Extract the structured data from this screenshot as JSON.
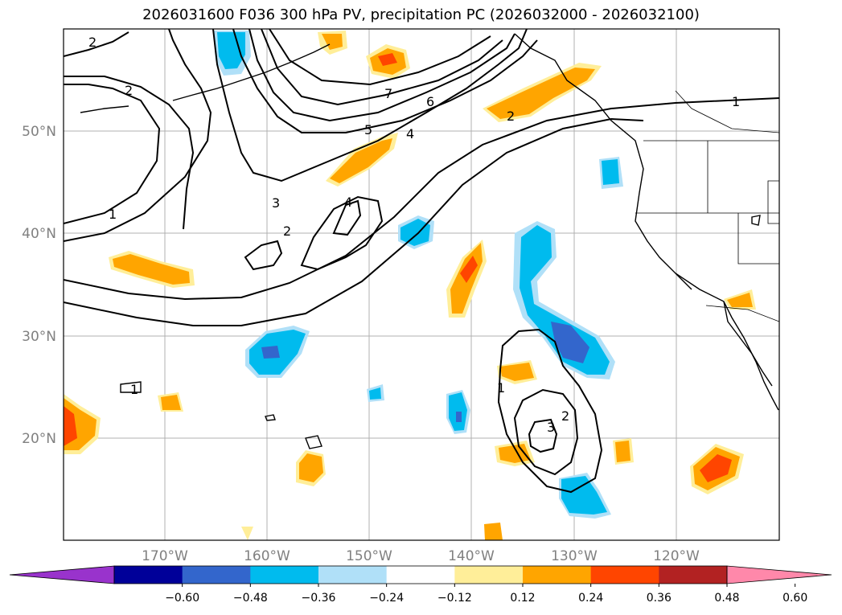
{
  "title": "2026031600 F036 300 hPa PV, precipitation PC (2026032000 - 2026032100)",
  "lat_labels": [
    "50°N",
    "40°N",
    "30°N",
    "20°N"
  ],
  "lon_labels": [
    "170°W",
    "160°W",
    "150°W",
    "140°W",
    "130°W",
    "120°W"
  ],
  "colorbar": {
    "colors": [
      "#9933cc",
      "#000099",
      "#3366cc",
      "#00bbee",
      "#b0e0f8",
      "#ffffff",
      "#ffee99",
      "#ffa500",
      "#ff4500",
      "#b22222",
      "#ff88aa"
    ],
    "tick_labels": [
      "−0.60",
      "−0.48",
      "−0.36",
      "−0.24",
      "−0.12",
      "0.12",
      "0.24",
      "0.36",
      "0.48",
      "0.60"
    ]
  },
  "contour_labels": [
    "2",
    "2",
    "1",
    "7",
    "6",
    "5",
    "4",
    "3",
    "4",
    "2",
    "2",
    "1",
    "1",
    "2",
    "3",
    "1"
  ]
}
